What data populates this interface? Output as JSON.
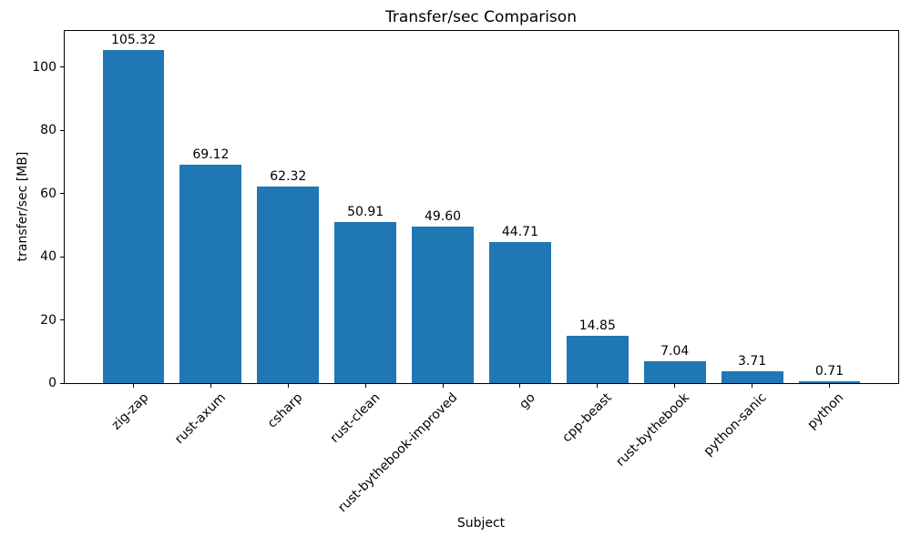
{
  "chart_data": {
    "type": "bar",
    "title": "Transfer/sec Comparison",
    "xlabel": "Subject",
    "ylabel": "transfer/sec [MB]",
    "categories": [
      "zig-zap",
      "rust-axum",
      "csharp",
      "rust-clean",
      "rust-bythebook-improved",
      "go",
      "cpp-beast",
      "rust-bythebook",
      "python-sanic",
      "python"
    ],
    "values": [
      105.32,
      69.12,
      62.32,
      50.91,
      49.6,
      44.71,
      14.85,
      7.04,
      3.71,
      0.71
    ],
    "value_labels": [
      "105.32",
      "69.12",
      "62.32",
      "50.91",
      "49.60",
      "44.71",
      "14.85",
      "7.04",
      "3.71",
      "0.71"
    ],
    "yticks": [
      0,
      20,
      40,
      60,
      80,
      100
    ],
    "ytick_labels": [
      "0",
      "20",
      "40",
      "60",
      "80",
      "100"
    ],
    "ylim": [
      0,
      111.5
    ],
    "xlim": [
      -0.89,
      9.89
    ],
    "bar_width": 0.8,
    "bar_color": "#1f77b4",
    "axis_color": "#000000",
    "grid": false,
    "legend": null,
    "xtick_rotation_deg": 45
  }
}
